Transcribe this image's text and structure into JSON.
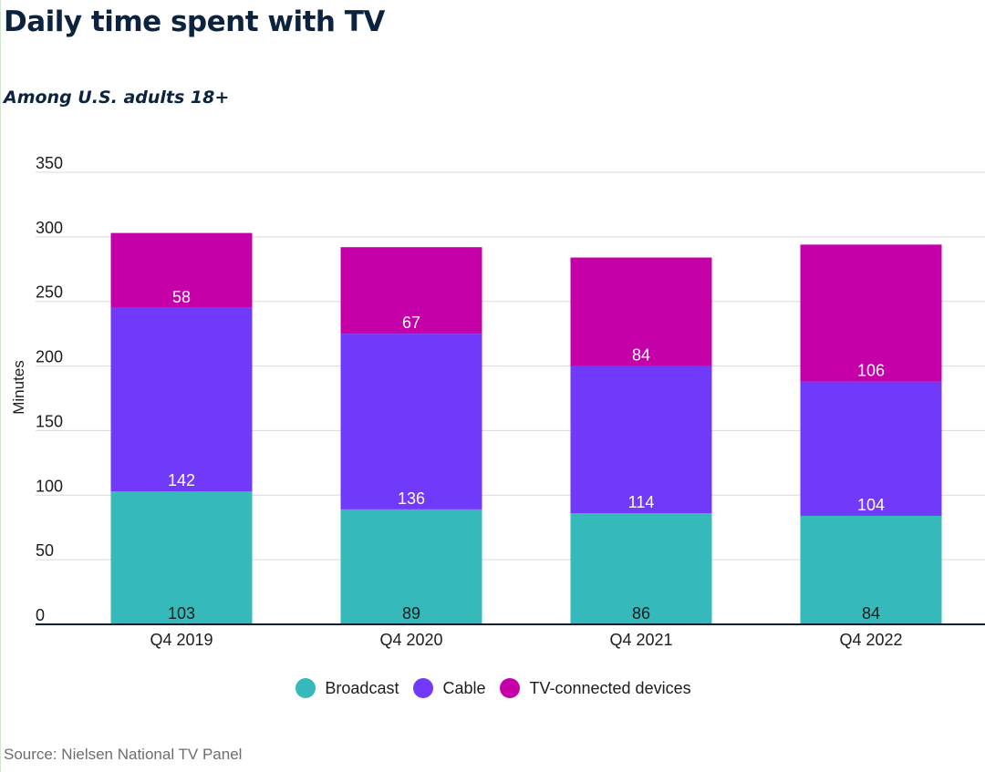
{
  "header": {
    "title": "Daily time spent with TV",
    "subtitle": "Among U.S. adults 18+"
  },
  "source": "Source: Nielsen National TV Panel",
  "chart_data": {
    "type": "bar",
    "stacked": true,
    "title": "Daily time spent with TV",
    "subtitle": "Among U.S. adults 18+",
    "xlabel": "",
    "ylabel": "Minutes",
    "ylim": [
      0,
      350
    ],
    "yticks": [
      0,
      50,
      100,
      150,
      200,
      250,
      300,
      350
    ],
    "grid": true,
    "legend_position": "bottom-center",
    "categories": [
      "Q4 2019",
      "Q4 2020",
      "Q4 2021",
      "Q4 2022"
    ],
    "series": [
      {
        "name": "Broadcast",
        "color": "#36b9bb",
        "values": [
          103,
          89,
          86,
          84
        ]
      },
      {
        "name": "Cable",
        "color": "#7139fa",
        "values": [
          142,
          136,
          114,
          104
        ]
      },
      {
        "name": "TV-connected devices",
        "color": "#c500a8",
        "values": [
          58,
          67,
          84,
          106
        ]
      }
    ]
  }
}
